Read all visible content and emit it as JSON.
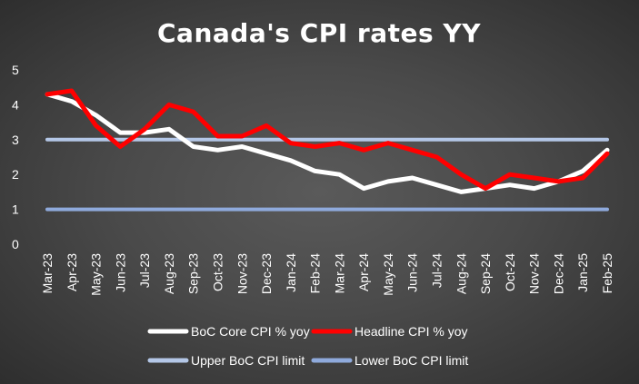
{
  "chart_data": {
    "type": "line",
    "title": "Canada's CPI rates YY",
    "categories": [
      "Mar-23",
      "Apr-23",
      "May-23",
      "Jun-23",
      "Jul-23",
      "Aug-23",
      "Sep-23",
      "Oct-23",
      "Nov-23",
      "Dec-23",
      "Jan-24",
      "Feb-24",
      "Mar-24",
      "Apr-24",
      "May-24",
      "Jun-24",
      "Jul-24",
      "Aug-24",
      "Sep-24",
      "Oct-24",
      "Nov-24",
      "Dec-24",
      "Jan-25",
      "Feb-25"
    ],
    "ylim": [
      0,
      5
    ],
    "yticks": [
      "0",
      "1",
      "2",
      "3",
      "4",
      "5"
    ],
    "grid": false,
    "legend_position": "bottom",
    "series": [
      {
        "name": "BoC Core CPI % yoy",
        "color": "#ffffff",
        "values": [
          4.3,
          4.1,
          3.7,
          3.2,
          3.2,
          3.3,
          2.8,
          2.7,
          2.8,
          2.6,
          2.4,
          2.1,
          2.0,
          1.6,
          1.8,
          1.9,
          1.7,
          1.5,
          1.6,
          1.7,
          1.6,
          1.8,
          2.1,
          2.7
        ]
      },
      {
        "name": "Headline CPI % yoy",
        "color": "#ff0000",
        "values": [
          4.3,
          4.4,
          3.4,
          2.8,
          3.3,
          4.0,
          3.8,
          3.1,
          3.1,
          3.4,
          2.9,
          2.8,
          2.9,
          2.7,
          2.9,
          2.7,
          2.5,
          2.0,
          1.6,
          2.0,
          1.9,
          1.8,
          1.9,
          2.6
        ]
      },
      {
        "name": "Upper BoC CPI limit",
        "color": "#b4c7e7",
        "values": [
          3,
          3,
          3,
          3,
          3,
          3,
          3,
          3,
          3,
          3,
          3,
          3,
          3,
          3,
          3,
          3,
          3,
          3,
          3,
          3,
          3,
          3,
          3,
          3
        ]
      },
      {
        "name": "Lower BoC CPI limit",
        "color": "#8faadc",
        "values": [
          1,
          1,
          1,
          1,
          1,
          1,
          1,
          1,
          1,
          1,
          1,
          1,
          1,
          1,
          1,
          1,
          1,
          1,
          1,
          1,
          1,
          1,
          1,
          1
        ]
      }
    ]
  }
}
